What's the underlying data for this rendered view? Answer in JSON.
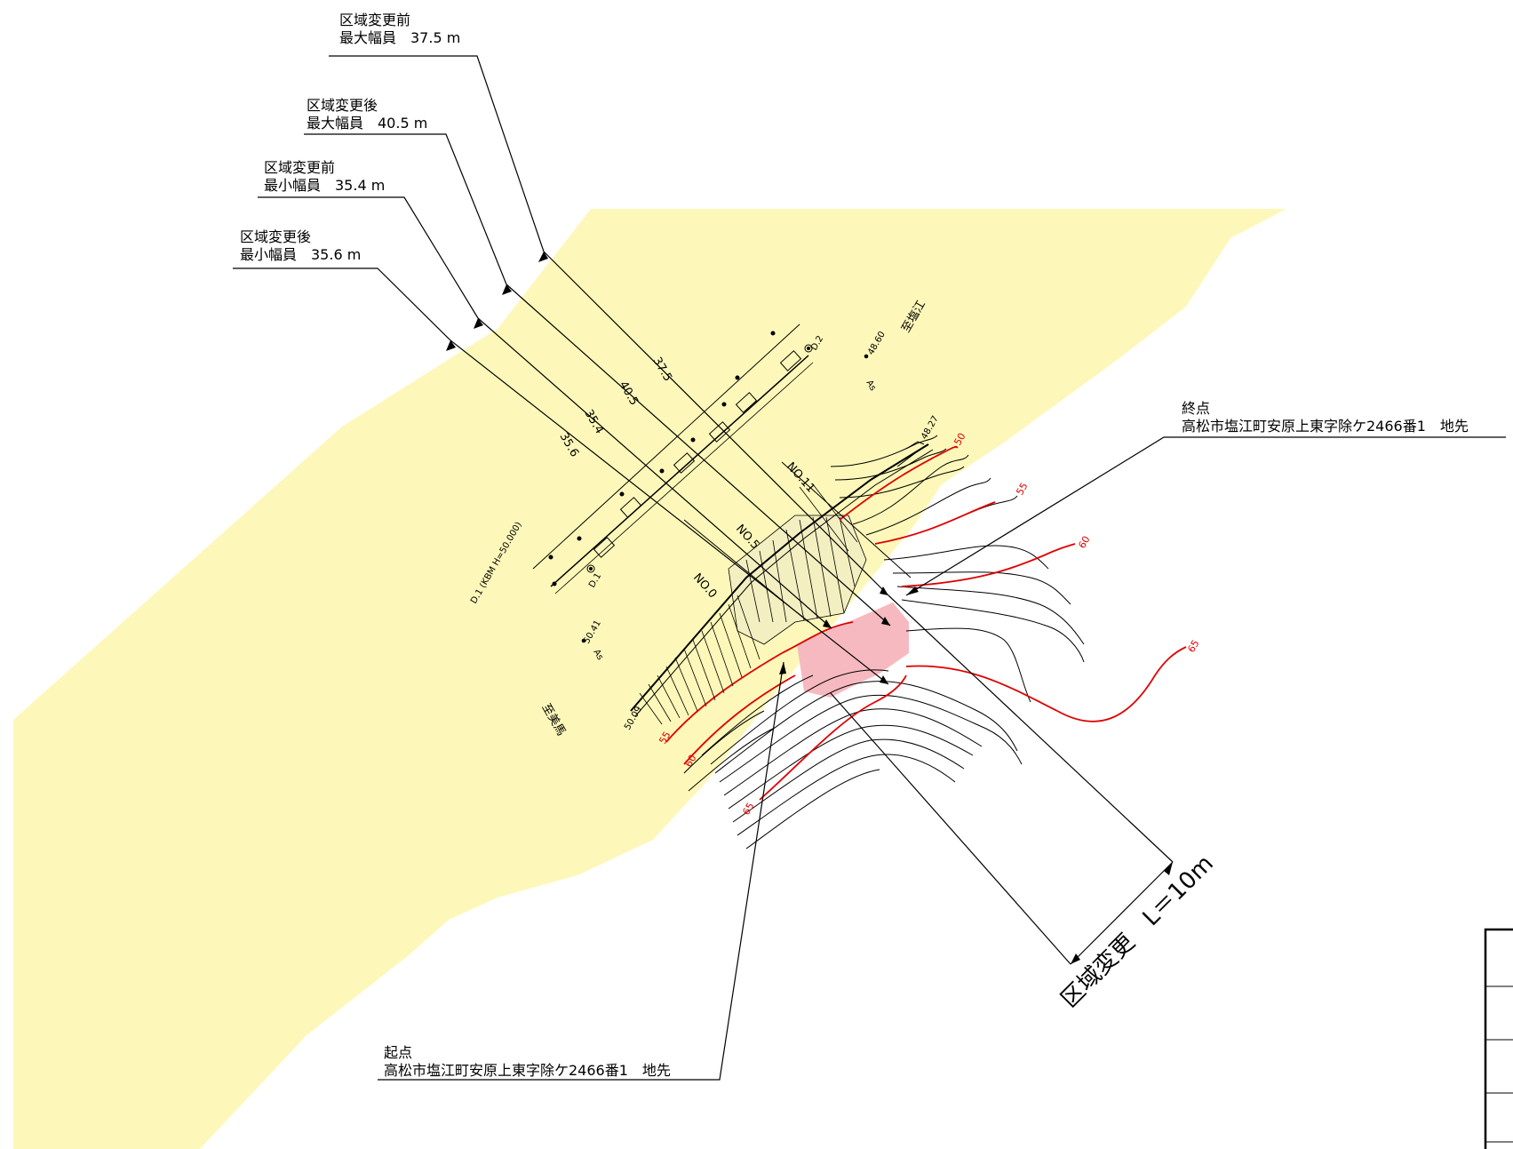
{
  "callouts": {
    "before_max": {
      "line1": "区域変更前",
      "line2": "最大幅員　37.5 m"
    },
    "after_max": {
      "line1": "区域変更後",
      "line2": "最大幅員　40.5 m"
    },
    "before_min": {
      "line1": "区域変更前",
      "line2": "最小幅員　35.4 m"
    },
    "after_min": {
      "line1": "区域変更後",
      "line2": "最小幅員　35.6 m"
    },
    "end_point": {
      "line1": "終点",
      "line2": "高松市塩江町安原上東字除ケ2466番1　地先"
    },
    "start_point": {
      "line1": "起点",
      "line2": "高松市塩江町安原上東字除ケ2466番1　地先"
    }
  },
  "dimensions": {
    "d1": "37.5",
    "d2": "40.5",
    "d3": "35.4",
    "d4": "35.6"
  },
  "stations": {
    "no0": "NO.0",
    "no5": "NO.5",
    "no11": "NO.11"
  },
  "labels": {
    "to_shioe": "至塩江",
    "to_kagawa": "至美馬",
    "as1": "As",
    "as2": "As",
    "elev1": "48.60",
    "elev2": "50.41",
    "elev3": "48.27",
    "elev4": "50.09",
    "bm_d1": "D.1",
    "bm_d2": "D.2",
    "bm_note": "D.1 (KBM H=50.000)"
  },
  "contours": {
    "c50": "50",
    "c55a": "55",
    "c60a": "60",
    "c65a": "65",
    "c55b": "55",
    "c60b": "60",
    "c65b": "65"
  },
  "section": {
    "label": "区域変更　L＝10m"
  },
  "colors": {
    "road_area": "#fdf8b9",
    "change_area": "#f7b9c0",
    "contour_index": "#e00000",
    "line": "#000000"
  }
}
